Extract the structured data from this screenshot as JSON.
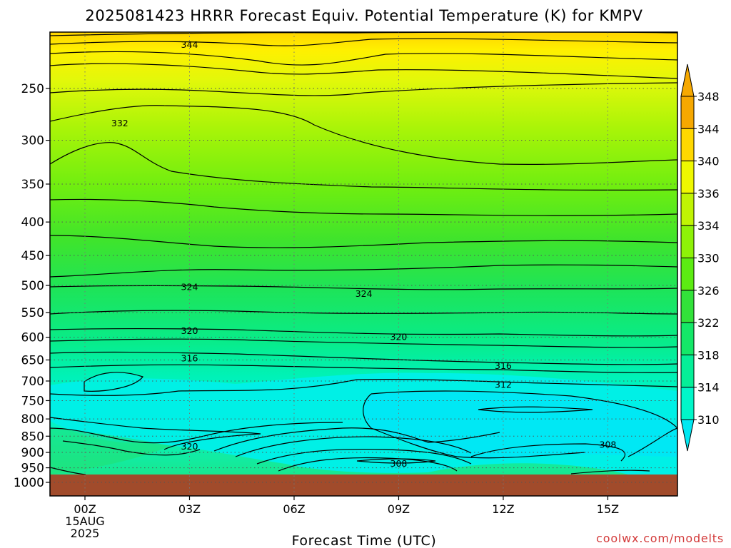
{
  "chart_data": {
    "type": "contour",
    "title": "2025081423 HRRR Forecast Equiv. Potential Temperature (K) for KMPV",
    "xlabel": "Forecast Time (UTC)",
    "ylabel": "",
    "x_ticks": [
      "00Z",
      "03Z",
      "06Z",
      "09Z",
      "12Z",
      "15Z"
    ],
    "x_date_label": [
      "15AUG",
      "2025"
    ],
    "y_ticks": [
      250,
      300,
      350,
      400,
      450,
      500,
      550,
      600,
      650,
      700,
      750,
      800,
      850,
      900,
      950,
      1000
    ],
    "y_scale": "log-pressure",
    "ground_level_hpa": 970,
    "grid": "dotted",
    "colorbar": {
      "levels": [
        310,
        314,
        318,
        322,
        326,
        330,
        334,
        336,
        340,
        344,
        348
      ],
      "colors": [
        "#00e8f2",
        "#00f7c9",
        "#05ef98",
        "#14e868",
        "#32e23a",
        "#5cec12",
        "#8ef208",
        "#c0f404",
        "#eff800",
        "#ffd800",
        "#f6a800"
      ],
      "extends": "both"
    },
    "contour_labels": [
      {
        "value": "344",
        "time_h": 3.0,
        "p": 214
      },
      {
        "value": "332",
        "time_h": 1.0,
        "p": 282
      },
      {
        "value": "324",
        "time_h": 3.0,
        "p": 502
      },
      {
        "value": "324",
        "time_h": 8.0,
        "p": 514
      },
      {
        "value": "320",
        "time_h": 3.0,
        "p": 586
      },
      {
        "value": "320",
        "time_h": 9.0,
        "p": 598
      },
      {
        "value": "316",
        "time_h": 3.0,
        "p": 645
      },
      {
        "value": "316",
        "time_h": 12.0,
        "p": 662
      },
      {
        "value": "312",
        "time_h": 12.0,
        "p": 708
      },
      {
        "value": "320",
        "time_h": 3.0,
        "p": 880
      },
      {
        "value": "308",
        "time_h": 15.0,
        "p": 874
      },
      {
        "value": "308",
        "time_h": 9.0,
        "p": 935
      }
    ]
  },
  "credit": "coolwx.com/modelts"
}
